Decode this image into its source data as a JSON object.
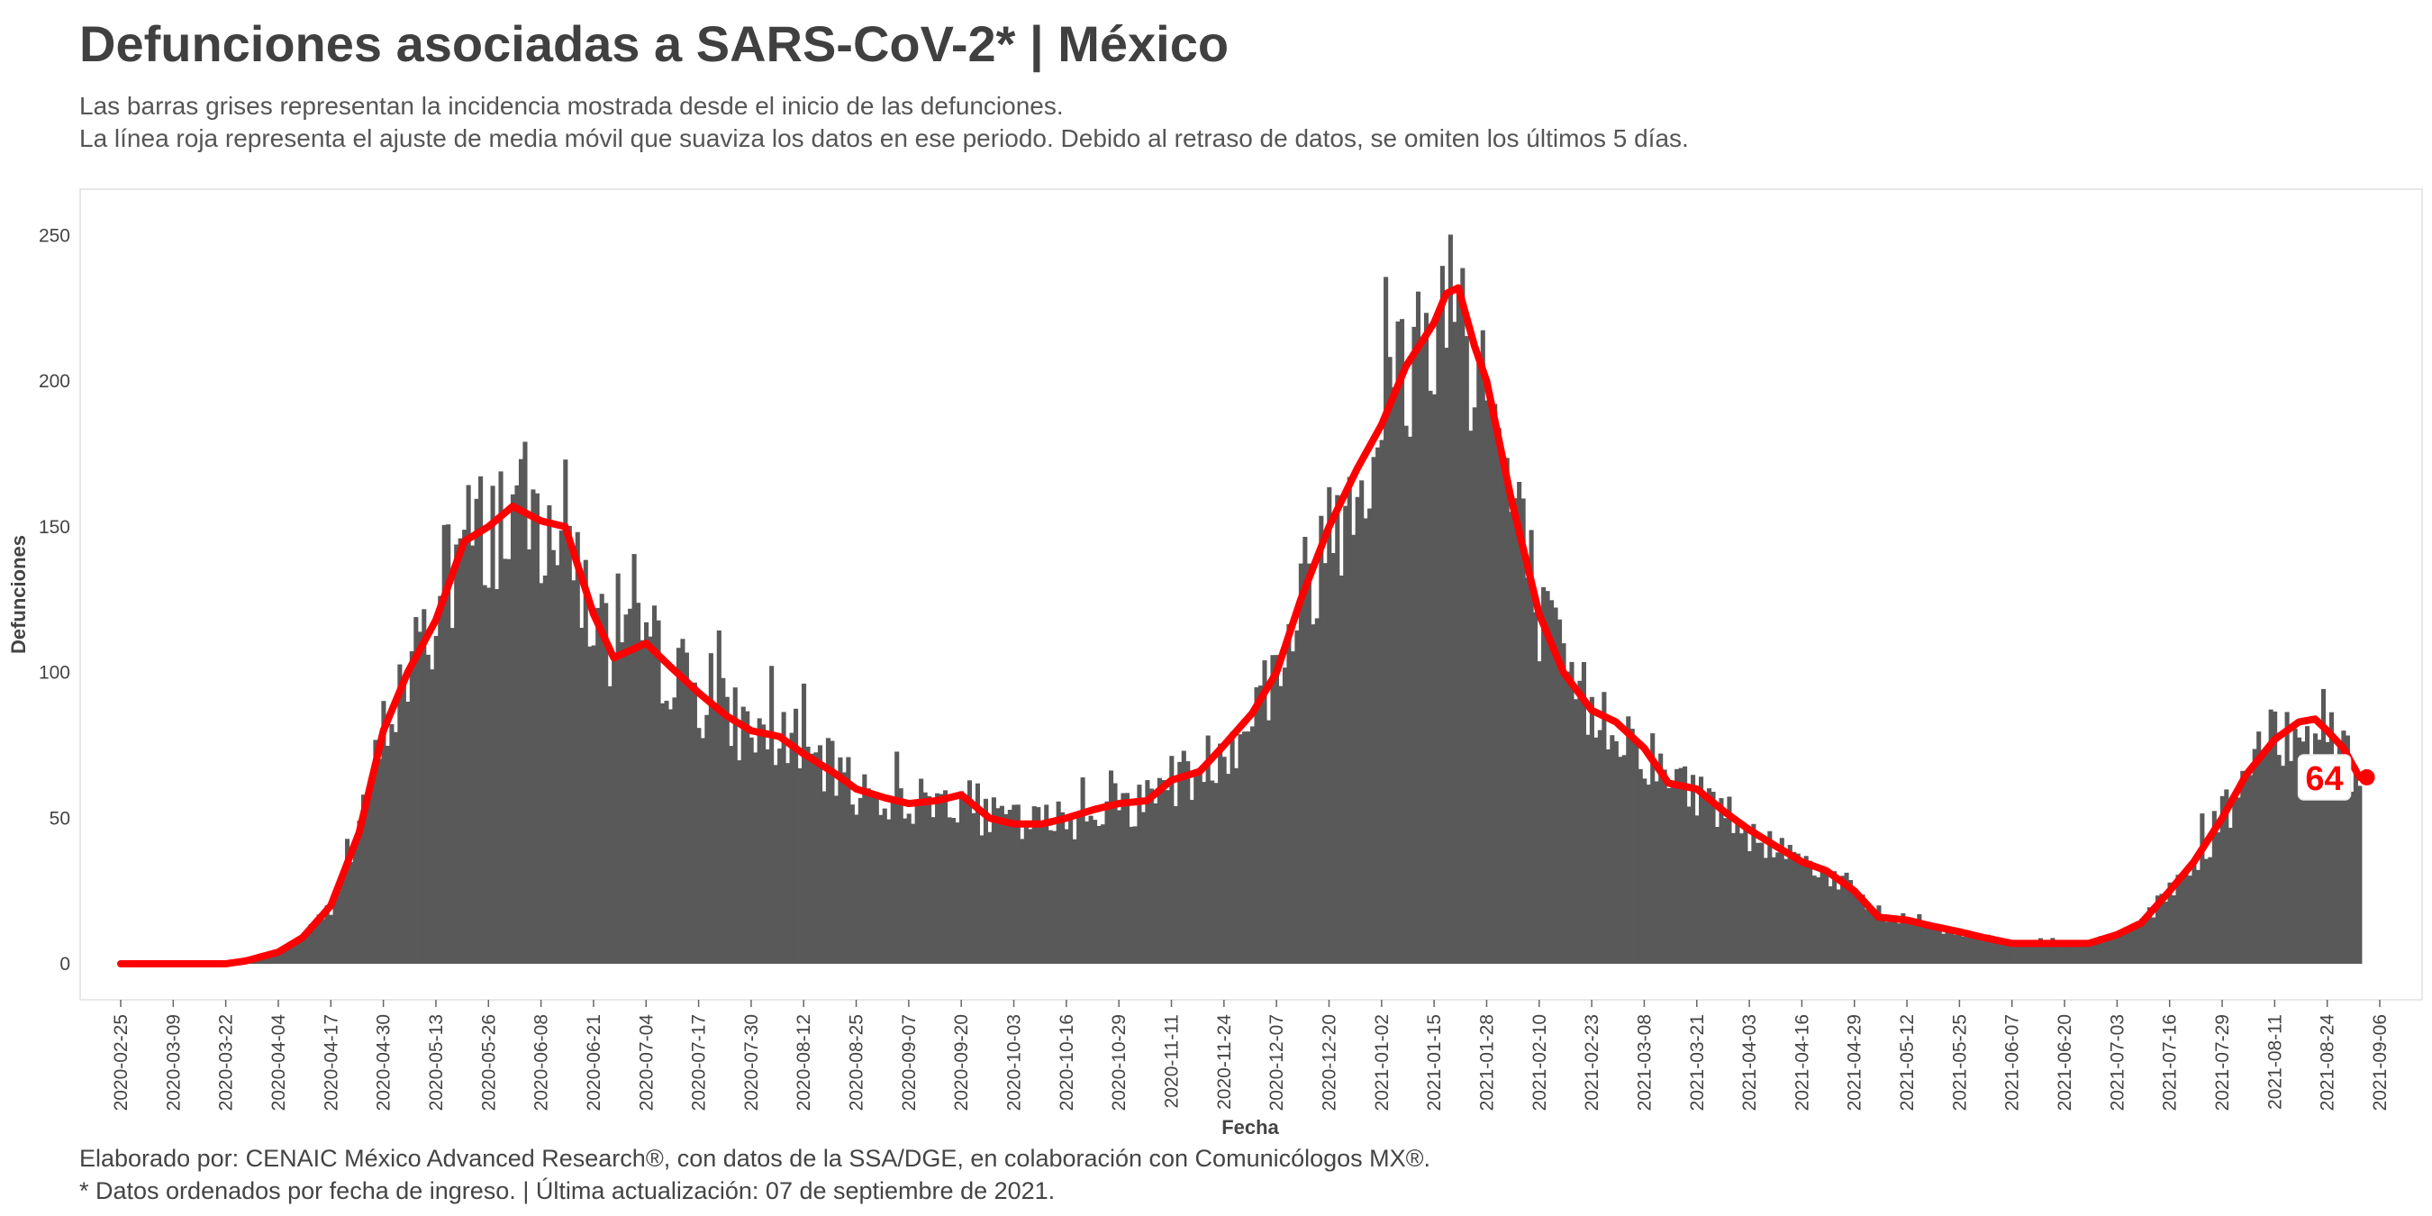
{
  "header": {
    "title": "Defunciones asociadas a SARS-CoV-2* | México",
    "subtitle_line1": "Las barras grises representan la incidencia mostrada desde el inicio de las defunciones.",
    "subtitle_line2": "La línea roja representa el ajuste de media móvil que suaviza los datos en ese periodo. Debido al retraso de datos, se omiten los últimos 5 días."
  },
  "footer": {
    "line1": "Elaborado por: CENAIC México Advanced Research®, con datos de la SSA/DGE, en colaboración con Comunicólogos MX®.",
    "line2": "* Datos ordenados por fecha de ingreso. | Última actualización: 07 de septiembre de 2021."
  },
  "colors": {
    "bars": "#595959",
    "moving_average": "#ff0000",
    "panel_border": "#e0e0e0"
  },
  "chart_data": {
    "type": "bar",
    "xlabel": "Fecha",
    "ylabel": "Defunciones",
    "x_start": "2020-02-25",
    "x_end": "2021-09-06",
    "ylim": [
      -12,
      265
    ],
    "yticks": [
      0,
      50,
      100,
      150,
      200,
      250
    ],
    "xticks": [
      "2020-02-25",
      "2020-03-09",
      "2020-03-22",
      "2020-04-04",
      "2020-04-17",
      "2020-04-30",
      "2020-05-13",
      "2020-05-26",
      "2020-06-08",
      "2020-06-21",
      "2020-07-04",
      "2020-07-17",
      "2020-07-30",
      "2020-08-12",
      "2020-08-25",
      "2020-09-07",
      "2020-09-20",
      "2020-10-03",
      "2020-10-16",
      "2020-10-29",
      "2020-11-11",
      "2020-11-24",
      "2020-12-07",
      "2020-12-20",
      "2021-01-02",
      "2021-01-15",
      "2021-01-28",
      "2021-02-10",
      "2021-02-23",
      "2021-03-08",
      "2021-03-21",
      "2021-04-03",
      "2021-04-16",
      "2021-04-29",
      "2021-05-12",
      "2021-05-25",
      "2021-06-07",
      "2021-06-20",
      "2021-07-03",
      "2021-07-16",
      "2021-07-29",
      "2021-08-11",
      "2021-08-24",
      "2021-09-06"
    ],
    "grid": false,
    "legend": "none",
    "series": [
      {
        "kind": "bars",
        "first_date": "2020-02-25",
        "last_date": "2021-09-01",
        "interval": "daily",
        "knots": [
          [
            "2020-02-25",
            0
          ],
          [
            "2020-03-22",
            0
          ],
          [
            "2020-03-27",
            1
          ],
          [
            "2020-04-04",
            4
          ],
          [
            "2020-04-10",
            9
          ],
          [
            "2020-04-17",
            20
          ],
          [
            "2020-04-24",
            45
          ],
          [
            "2020-04-30",
            80
          ],
          [
            "2020-05-06",
            100
          ],
          [
            "2020-05-13",
            118
          ],
          [
            "2020-05-20",
            145
          ],
          [
            "2020-05-26",
            150
          ],
          [
            "2020-06-01",
            157
          ],
          [
            "2020-06-08",
            152
          ],
          [
            "2020-06-14",
            150
          ],
          [
            "2020-06-21",
            120
          ],
          [
            "2020-06-26",
            105
          ],
          [
            "2020-07-04",
            110
          ],
          [
            "2020-07-10",
            102
          ],
          [
            "2020-07-17",
            93
          ],
          [
            "2020-07-24",
            85
          ],
          [
            "2020-07-30",
            80
          ],
          [
            "2020-08-06",
            78
          ],
          [
            "2020-08-12",
            72
          ],
          [
            "2020-08-19",
            66
          ],
          [
            "2020-08-25",
            60
          ],
          [
            "2020-09-01",
            57
          ],
          [
            "2020-09-07",
            55
          ],
          [
            "2020-09-14",
            56
          ],
          [
            "2020-09-20",
            58
          ],
          [
            "2020-09-27",
            50
          ],
          [
            "2020-10-03",
            48
          ],
          [
            "2020-10-10",
            48
          ],
          [
            "2020-10-16",
            50
          ],
          [
            "2020-10-23",
            53
          ],
          [
            "2020-10-29",
            55
          ],
          [
            "2020-11-05",
            56
          ],
          [
            "2020-11-11",
            63
          ],
          [
            "2020-11-18",
            66
          ],
          [
            "2020-11-24",
            75
          ],
          [
            "2020-12-01",
            86
          ],
          [
            "2020-12-07",
            100
          ],
          [
            "2020-12-13",
            125
          ],
          [
            "2020-12-20",
            150
          ],
          [
            "2020-12-27",
            170
          ],
          [
            "2021-01-02",
            185
          ],
          [
            "2021-01-08",
            205
          ],
          [
            "2021-01-15",
            220
          ],
          [
            "2021-01-18",
            230
          ],
          [
            "2021-01-21",
            232
          ],
          [
            "2021-01-25",
            212
          ],
          [
            "2021-01-28",
            200
          ],
          [
            "2021-02-03",
            160
          ],
          [
            "2021-02-10",
            120
          ],
          [
            "2021-02-16",
            100
          ],
          [
            "2021-02-23",
            87
          ],
          [
            "2021-03-01",
            83
          ],
          [
            "2021-03-08",
            74
          ],
          [
            "2021-03-14",
            62
          ],
          [
            "2021-03-21",
            60
          ],
          [
            "2021-03-28",
            52
          ],
          [
            "2021-04-03",
            46
          ],
          [
            "2021-04-10",
            40
          ],
          [
            "2021-04-16",
            35
          ],
          [
            "2021-04-22",
            32
          ],
          [
            "2021-04-29",
            25
          ],
          [
            "2021-05-05",
            16
          ],
          [
            "2021-05-12",
            15
          ],
          [
            "2021-05-18",
            13
          ],
          [
            "2021-05-25",
            11
          ],
          [
            "2021-05-31",
            9
          ],
          [
            "2021-06-07",
            7
          ],
          [
            "2021-06-13",
            7
          ],
          [
            "2021-06-20",
            7
          ],
          [
            "2021-06-26",
            7
          ],
          [
            "2021-07-03",
            10
          ],
          [
            "2021-07-09",
            14
          ],
          [
            "2021-07-16",
            25
          ],
          [
            "2021-07-22",
            35
          ],
          [
            "2021-07-29",
            50
          ],
          [
            "2021-08-04",
            65
          ],
          [
            "2021-08-11",
            77
          ],
          [
            "2021-08-17",
            83
          ],
          [
            "2021-08-21",
            84
          ],
          [
            "2021-08-24",
            80
          ],
          [
            "2021-08-28",
            74
          ],
          [
            "2021-09-01",
            64
          ]
        ]
      },
      {
        "kind": "line",
        "first_date": "2020-02-25",
        "last_date": "2021-09-01",
        "knots": [
          [
            "2020-02-25",
            0
          ],
          [
            "2020-03-22",
            0
          ],
          [
            "2020-03-27",
            1
          ],
          [
            "2020-04-04",
            4
          ],
          [
            "2020-04-10",
            9
          ],
          [
            "2020-04-17",
            20
          ],
          [
            "2020-04-24",
            45
          ],
          [
            "2020-04-30",
            80
          ],
          [
            "2020-05-06",
            100
          ],
          [
            "2020-05-13",
            118
          ],
          [
            "2020-05-20",
            145
          ],
          [
            "2020-05-26",
            150
          ],
          [
            "2020-06-01",
            157
          ],
          [
            "2020-06-08",
            152
          ],
          [
            "2020-06-14",
            150
          ],
          [
            "2020-06-21",
            120
          ],
          [
            "2020-06-26",
            105
          ],
          [
            "2020-07-04",
            110
          ],
          [
            "2020-07-10",
            102
          ],
          [
            "2020-07-17",
            93
          ],
          [
            "2020-07-24",
            85
          ],
          [
            "2020-07-30",
            80
          ],
          [
            "2020-08-06",
            78
          ],
          [
            "2020-08-12",
            72
          ],
          [
            "2020-08-19",
            66
          ],
          [
            "2020-08-25",
            60
          ],
          [
            "2020-09-01",
            57
          ],
          [
            "2020-09-07",
            55
          ],
          [
            "2020-09-14",
            56
          ],
          [
            "2020-09-20",
            58
          ],
          [
            "2020-09-27",
            50
          ],
          [
            "2020-10-03",
            48
          ],
          [
            "2020-10-10",
            48
          ],
          [
            "2020-10-16",
            50
          ],
          [
            "2020-10-23",
            53
          ],
          [
            "2020-10-29",
            55
          ],
          [
            "2020-11-05",
            56
          ],
          [
            "2020-11-11",
            63
          ],
          [
            "2020-11-18",
            66
          ],
          [
            "2020-11-24",
            75
          ],
          [
            "2020-12-01",
            86
          ],
          [
            "2020-12-07",
            100
          ],
          [
            "2020-12-13",
            125
          ],
          [
            "2020-12-20",
            150
          ],
          [
            "2020-12-27",
            170
          ],
          [
            "2021-01-02",
            185
          ],
          [
            "2021-01-08",
            205
          ],
          [
            "2021-01-15",
            220
          ],
          [
            "2021-01-18",
            230
          ],
          [
            "2021-01-21",
            232
          ],
          [
            "2021-01-25",
            212
          ],
          [
            "2021-01-28",
            200
          ],
          [
            "2021-02-03",
            160
          ],
          [
            "2021-02-10",
            120
          ],
          [
            "2021-02-16",
            100
          ],
          [
            "2021-02-23",
            87
          ],
          [
            "2021-03-01",
            83
          ],
          [
            "2021-03-08",
            74
          ],
          [
            "2021-03-14",
            62
          ],
          [
            "2021-03-21",
            60
          ],
          [
            "2021-03-28",
            52
          ],
          [
            "2021-04-03",
            46
          ],
          [
            "2021-04-10",
            40
          ],
          [
            "2021-04-16",
            35
          ],
          [
            "2021-04-22",
            32
          ],
          [
            "2021-04-29",
            25
          ],
          [
            "2021-05-05",
            16
          ],
          [
            "2021-05-12",
            15
          ],
          [
            "2021-05-18",
            13
          ],
          [
            "2021-05-25",
            11
          ],
          [
            "2021-05-31",
            9
          ],
          [
            "2021-06-07",
            7
          ],
          [
            "2021-06-13",
            7
          ],
          [
            "2021-06-20",
            7
          ],
          [
            "2021-06-26",
            7
          ],
          [
            "2021-07-03",
            10
          ],
          [
            "2021-07-09",
            14
          ],
          [
            "2021-07-16",
            25
          ],
          [
            "2021-07-22",
            35
          ],
          [
            "2021-07-29",
            50
          ],
          [
            "2021-08-04",
            65
          ],
          [
            "2021-08-11",
            77
          ],
          [
            "2021-08-17",
            83
          ],
          [
            "2021-08-21",
            84
          ],
          [
            "2021-08-24",
            80
          ],
          [
            "2021-08-28",
            74
          ],
          [
            "2021-09-01",
            64
          ]
        ]
      }
    ],
    "last_value_label": "64"
  }
}
